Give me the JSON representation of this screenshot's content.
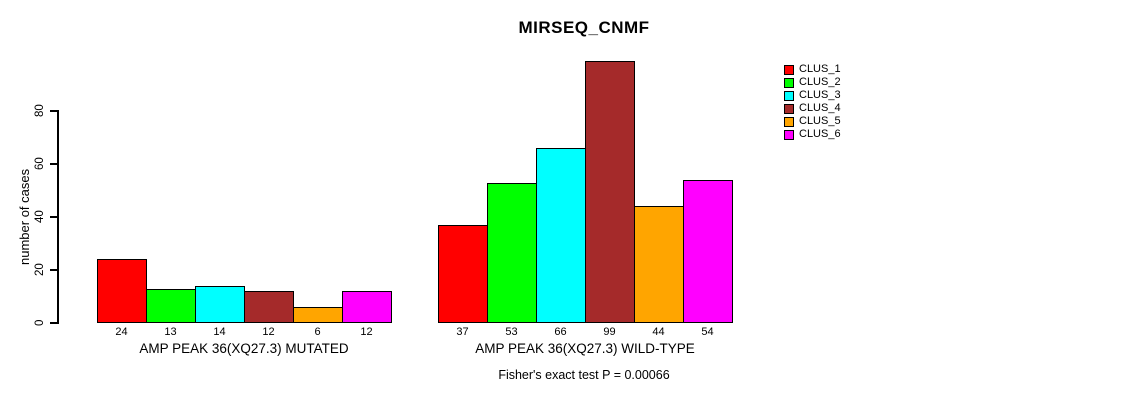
{
  "chart_data": {
    "type": "bar",
    "title": "MIRSEQ_CNMF",
    "ylabel": "number of cases",
    "ylim": [
      0,
      80
    ],
    "yticks": [
      0,
      20,
      40,
      60,
      80
    ],
    "grid": false,
    "legend_position": "right",
    "value_labels_position": "below-bars",
    "clusters": [
      {
        "name": "CLUS_1",
        "color": "#ff0000"
      },
      {
        "name": "CLUS_2",
        "color": "#00ff00"
      },
      {
        "name": "CLUS_3",
        "color": "#00ffff"
      },
      {
        "name": "CLUS_4",
        "color": "#a52a2a"
      },
      {
        "name": "CLUS_5",
        "color": "#ffa500"
      },
      {
        "name": "CLUS_6",
        "color": "#ff00ff"
      }
    ],
    "groups": [
      {
        "label": "AMP PEAK 36(XQ27.3) MUTATED",
        "values": [
          24,
          13,
          14,
          12,
          6,
          12
        ]
      },
      {
        "label": "AMP PEAK 36(XQ27.3) WILD-TYPE",
        "values": [
          37,
          53,
          66,
          99,
          44,
          54
        ]
      }
    ],
    "footnote": "Fisher's exact test P = 0.00066"
  }
}
